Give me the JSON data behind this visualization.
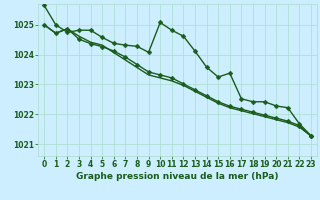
{
  "background_color": "#cceeff",
  "grid_color": "#aaddcc",
  "line_color": "#1a5c1a",
  "marker_color": "#1a5c1a",
  "xlabel": "Graphe pression niveau de la mer (hPa)",
  "xlabel_color": "#1a5c1a",
  "ylim": [
    1020.6,
    1025.7
  ],
  "xlim": [
    -0.5,
    23.5
  ],
  "yticks": [
    1021,
    1022,
    1023,
    1024,
    1025
  ],
  "xticks": [
    0,
    1,
    2,
    3,
    4,
    5,
    6,
    7,
    8,
    9,
    10,
    11,
    12,
    13,
    14,
    15,
    16,
    17,
    18,
    19,
    20,
    21,
    22,
    23
  ],
  "series": [
    {
      "y": [
        1025.65,
        1025.0,
        1024.75,
        1024.82,
        1024.82,
        1024.58,
        1024.38,
        1024.32,
        1024.28,
        1024.08,
        1025.08,
        1024.82,
        1024.62,
        1024.12,
        1023.58,
        1023.25,
        1023.38,
        1022.52,
        1022.42,
        1022.42,
        1022.28,
        1022.22,
        1021.68,
        1021.28
      ],
      "marker": true,
      "linewidth": 1.0
    },
    {
      "y": [
        1025.0,
        1024.72,
        1024.87,
        1024.62,
        1024.42,
        1024.32,
        1024.07,
        1023.82,
        1023.57,
        1023.32,
        1023.22,
        1023.12,
        1022.97,
        1022.77,
        1022.57,
        1022.37,
        1022.22,
        1022.12,
        1022.02,
        1021.92,
        1021.82,
        1021.72,
        1021.57,
        1021.27
      ],
      "marker": false,
      "linewidth": 1.0
    },
    {
      "y": [
        1025.0,
        1024.72,
        1024.87,
        1024.52,
        1024.37,
        1024.27,
        1024.12,
        1023.92,
        1023.67,
        1023.42,
        1023.32,
        1023.22,
        1023.02,
        1022.82,
        1022.62,
        1022.42,
        1022.27,
        1022.17,
        1022.07,
        1021.97,
        1021.87,
        1021.77,
        1021.62,
        1021.27
      ],
      "marker": true,
      "linewidth": 1.0
    }
  ],
  "marker_size": 2.5,
  "tick_fontsize": 5.5,
  "xlabel_fontsize": 6.5
}
